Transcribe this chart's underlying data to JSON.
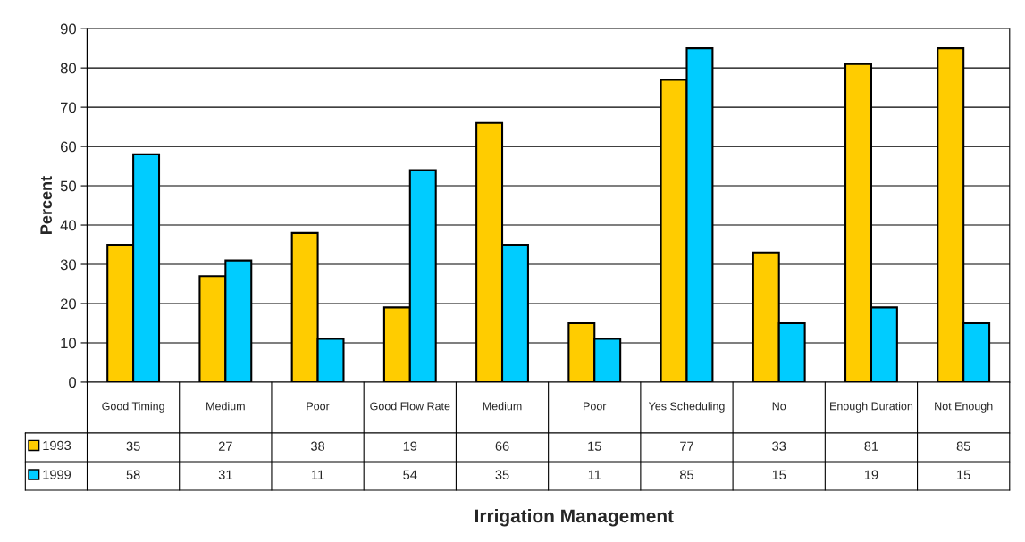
{
  "chart_data": {
    "type": "bar",
    "annotations": [
      "Irrigation Management"
    ],
    "ylabel": "Percent",
    "categories": [
      "Good Timing",
      "Medium",
      "Poor",
      "Good Flow Rate",
      "Medium",
      "Poor",
      "Yes Scheduling",
      "No",
      "Enough Duration",
      "Not Enough"
    ],
    "series": [
      {
        "name": "1993",
        "color": "#ffcc00",
        "values": [
          35,
          27,
          38,
          19,
          66,
          15,
          77,
          33,
          81,
          85
        ]
      },
      {
        "name": "1999",
        "color": "#00ccff",
        "values": [
          58,
          31,
          11,
          54,
          35,
          11,
          85,
          15,
          19,
          15
        ]
      }
    ],
    "ylim": [
      0,
      90
    ],
    "yticks": [
      0,
      10,
      20,
      30,
      40,
      50,
      60,
      70,
      80,
      90
    ],
    "grid": "y",
    "data_labels": true,
    "legend": "bottom left"
  }
}
